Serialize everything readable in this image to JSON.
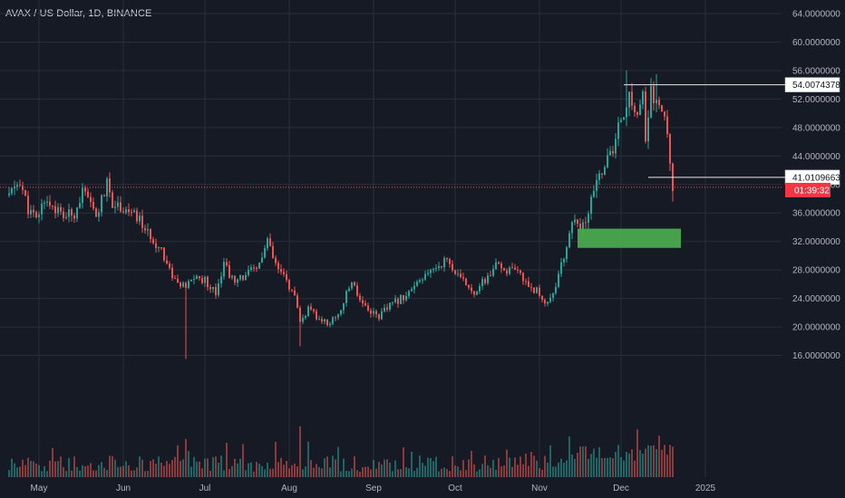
{
  "header": {
    "title": "AVAX / US Dollar, 1D, BINANCE"
  },
  "colors": {
    "background": "#161a25",
    "grid": "#2a2e39",
    "up": "#26a69a",
    "down": "#ef5350",
    "text": "#b2b5be",
    "zone": "#4caf50",
    "countdown": "#f23645"
  },
  "chart_data": {
    "type": "candlestick",
    "title": "AVAX / US Dollar, 1D, BINANCE",
    "ylim": [
      14,
      66
    ],
    "y_ticks": [
      "64.0000000",
      "60.0000000",
      "56.0000000",
      "52.0000000",
      "48.0000000",
      "44.0000000",
      "40.0000000",
      "36.0000000",
      "32.0000000",
      "28.0000000",
      "24.0000000",
      "20.0000000",
      "16.0000000"
    ],
    "x_ticks": [
      "May",
      "Jun",
      "Jul",
      "Aug",
      "Sep",
      "Oct",
      "Nov",
      "Dec",
      "2025"
    ],
    "grid": true,
    "path": [
      [
        "2024-04-20",
        38.5
      ],
      [
        "2024-04-24",
        40.5
      ],
      [
        "2024-04-27",
        36.5
      ],
      [
        "2024-04-30",
        35.0
      ],
      [
        "2024-05-03",
        38.0
      ],
      [
        "2024-05-06",
        37.0
      ],
      [
        "2024-05-10",
        35.5
      ],
      [
        "2024-05-14",
        36.0
      ],
      [
        "2024-05-17",
        39.0
      ],
      [
        "2024-05-20",
        37.0
      ],
      [
        "2024-05-22",
        35.5
      ],
      [
        "2024-05-26",
        40.0
      ],
      [
        "2024-05-28",
        37.5
      ],
      [
        "2024-06-02",
        36.5
      ],
      [
        "2024-06-07",
        35.0
      ],
      [
        "2024-06-10",
        33.0
      ],
      [
        "2024-06-15",
        31.0
      ],
      [
        "2024-06-18",
        28.0
      ],
      [
        "2024-06-21",
        26.0
      ],
      [
        "2024-06-24",
        25.5
      ],
      [
        "2024-06-27",
        27.0
      ],
      [
        "2024-07-01",
        26.5
      ],
      [
        "2024-07-05",
        25.0
      ],
      [
        "2024-07-08",
        29.0
      ],
      [
        "2024-07-12",
        26.0
      ],
      [
        "2024-07-16",
        27.5
      ],
      [
        "2024-07-20",
        28.0
      ],
      [
        "2024-07-24",
        32.0
      ],
      [
        "2024-07-27",
        28.5
      ],
      [
        "2024-07-31",
        26.5
      ],
      [
        "2024-08-03",
        24.0
      ],
      [
        "2024-08-05",
        20.5
      ],
      [
        "2024-08-08",
        22.5
      ],
      [
        "2024-08-12",
        21.0
      ],
      [
        "2024-08-16",
        20.5
      ],
      [
        "2024-08-20",
        22.5
      ],
      [
        "2024-08-24",
        26.5
      ],
      [
        "2024-08-27",
        24.0
      ],
      [
        "2024-08-30",
        22.5
      ],
      [
        "2024-09-03",
        21.5
      ],
      [
        "2024-09-07",
        23.0
      ],
      [
        "2024-09-11",
        24.0
      ],
      [
        "2024-09-16",
        25.5
      ],
      [
        "2024-09-20",
        27.0
      ],
      [
        "2024-09-24",
        28.5
      ],
      [
        "2024-09-28",
        29.5
      ],
      [
        "2024-10-02",
        27.0
      ],
      [
        "2024-10-05",
        26.0
      ],
      [
        "2024-10-08",
        25.0
      ],
      [
        "2024-10-12",
        26.5
      ],
      [
        "2024-10-16",
        28.5
      ],
      [
        "2024-10-20",
        28.0
      ],
      [
        "2024-10-24",
        27.5
      ],
      [
        "2024-10-28",
        26.0
      ],
      [
        "2024-10-31",
        25.0
      ],
      [
        "2024-11-03",
        23.5
      ],
      [
        "2024-11-05",
        24.0
      ],
      [
        "2024-11-08",
        27.0
      ],
      [
        "2024-11-11",
        31.5
      ],
      [
        "2024-11-13",
        35.0
      ],
      [
        "2024-11-16",
        33.5
      ],
      [
        "2024-11-19",
        36.0
      ],
      [
        "2024-11-22",
        40.5
      ],
      [
        "2024-11-25",
        43.0
      ],
      [
        "2024-11-28",
        44.5
      ],
      [
        "2024-12-01",
        49.5
      ],
      [
        "2024-12-04",
        52.0
      ],
      [
        "2024-12-07",
        50.0
      ],
      [
        "2024-12-09",
        52.5
      ],
      [
        "2024-12-10",
        45.5
      ],
      [
        "2024-12-12",
        53.0
      ],
      [
        "2024-12-14",
        51.5
      ],
      [
        "2024-12-16",
        50.0
      ],
      [
        "2024-12-18",
        47.5
      ],
      [
        "2024-12-19",
        43.5
      ],
      [
        "2024-12-20",
        39.5
      ]
    ],
    "annotations": {
      "resistance": {
        "label": "54.0074378",
        "value": 54.0074378,
        "from": "2024-12-02"
      },
      "support": {
        "label": "41.0109663",
        "value": 41.0109663,
        "from": "2024-12-11"
      },
      "current_price": {
        "value": 39.6,
        "countdown": "01:39:32"
      },
      "zone": {
        "from": "2024-11-15",
        "to": "2024-12-23",
        "low": 31.1,
        "high": 33.8
      }
    }
  }
}
